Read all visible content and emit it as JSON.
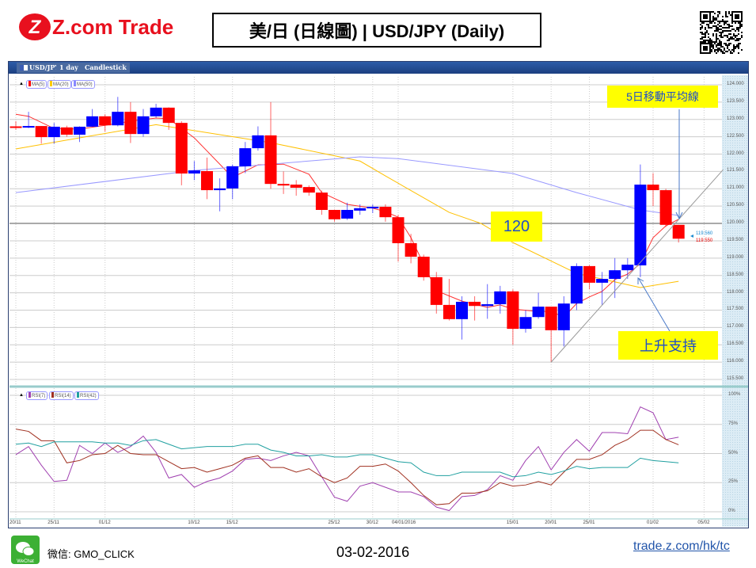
{
  "header": {
    "logo_text": "Z.com Trade",
    "title": "美/日 (日線圖) | USD/JPY  (Daily)"
  },
  "toolbar": {
    "symbol": "USD/JPY",
    "interval": "1 day",
    "chart_type": "Candlestick"
  },
  "footer": {
    "wechat_label": "微信: GMO_CLICK",
    "wechat_icon_text": "WeChat",
    "date": "03-02-2016",
    "link": "trade.z.com/hk/tc"
  },
  "annotations": {
    "ma5_note": "5日移動平均線",
    "level_note": "120",
    "support_note": "上升支持"
  },
  "colors": {
    "up": "#0000ff",
    "down": "#ff0000",
    "ma5": "#ff3030",
    "ma20": "#ffc000",
    "ma50": "#9999ff",
    "rsi7": "#a040b0",
    "rsi14": "#a03020",
    "rsi42": "#20a0a0",
    "annotation_bg": "#ffff00",
    "annotation_text": "#1f4ec8"
  },
  "chart_data": [
    {
      "type": "candlestick",
      "title": "",
      "legend": [
        "MA(5)",
        "MA(20)",
        "MA(50)"
      ],
      "ylim": [
        115.5,
        124.0
      ],
      "y_ticks": [
        "124.000",
        "123.500",
        "123.000",
        "122.500",
        "122.000",
        "121.500",
        "121.000",
        "120.500",
        "120.000",
        "119.500",
        "119.000",
        "118.500",
        "118.000",
        "117.500",
        "117.000",
        "116.500",
        "116.000",
        "115.500"
      ],
      "x_ticks": [
        {
          "label": "20/11",
          "bar": 1
        },
        {
          "label": "25/11",
          "bar": 4
        },
        {
          "label": "01/12",
          "bar": 8
        },
        {
          "label": "10/12",
          "bar": 15
        },
        {
          "label": "15/12",
          "bar": 18
        },
        {
          "label": "25/12",
          "bar": 26
        },
        {
          "label": "30/12",
          "bar": 29
        },
        {
          "label": "04/01/2016",
          "bar": 31
        },
        {
          "label": "15/01",
          "bar": 40
        },
        {
          "label": "20/01",
          "bar": 43
        },
        {
          "label": "25/01",
          "bar": 46
        },
        {
          "label": "01/02",
          "bar": 51
        },
        {
          "label": "05/02",
          "bar": 55
        }
      ],
      "grid": true,
      "last_price_labels": {
        "ask": "119.560",
        "bid": "119.550"
      },
      "horizontal_line": 120.0,
      "ohlc": [
        [
          122.8,
          122.95,
          122.7,
          122.78
        ],
        [
          122.79,
          123.22,
          122.75,
          122.81
        ],
        [
          122.81,
          122.81,
          122.3,
          122.49
        ],
        [
          122.49,
          122.9,
          122.3,
          122.79
        ],
        [
          122.77,
          122.82,
          122.5,
          122.56
        ],
        [
          122.56,
          122.8,
          122.35,
          122.79
        ],
        [
          122.79,
          123.3,
          122.79,
          123.09
        ],
        [
          123.09,
          123.15,
          122.65,
          122.83
        ],
        [
          122.83,
          123.65,
          122.8,
          123.22
        ],
        [
          123.22,
          123.5,
          122.32,
          122.58
        ],
        [
          122.58,
          123.3,
          122.5,
          123.09
        ],
        [
          123.09,
          123.45,
          123.05,
          123.34
        ],
        [
          123.34,
          123.35,
          122.7,
          122.9
        ],
        [
          122.9,
          122.95,
          121.1,
          121.44
        ],
        [
          121.44,
          121.8,
          121.25,
          121.53
        ],
        [
          121.51,
          121.9,
          120.7,
          120.96
        ],
        [
          120.96,
          121.3,
          120.35,
          121.01
        ],
        [
          121.01,
          121.7,
          120.7,
          121.65
        ],
        [
          121.65,
          122.35,
          121.45,
          122.17
        ],
        [
          122.17,
          122.8,
          122.1,
          122.54
        ],
        [
          122.54,
          123.5,
          121.0,
          121.14
        ],
        [
          121.14,
          121.5,
          120.85,
          121.12
        ],
        [
          121.12,
          121.25,
          120.8,
          121.03
        ],
        [
          121.05,
          121.1,
          120.8,
          120.89
        ],
        [
          120.89,
          120.95,
          120.25,
          120.39
        ],
        [
          120.39,
          120.4,
          120.05,
          120.12
        ],
        [
          120.14,
          120.6,
          120.1,
          120.39
        ],
        [
          120.37,
          120.55,
          120.25,
          120.44
        ],
        [
          120.44,
          120.55,
          120.3,
          120.48
        ],
        [
          120.48,
          120.55,
          120.05,
          120.18
        ],
        [
          120.18,
          120.25,
          118.9,
          119.43
        ],
        [
          119.43,
          119.7,
          118.85,
          119.04
        ],
        [
          119.04,
          119.1,
          118.35,
          118.45
        ],
        [
          118.45,
          118.6,
          117.4,
          117.65
        ],
        [
          117.65,
          118.4,
          117.2,
          117.24
        ],
        [
          117.24,
          117.9,
          116.65,
          117.74
        ],
        [
          117.74,
          117.9,
          117.2,
          117.62
        ],
        [
          117.62,
          118.25,
          117.25,
          117.67
        ],
        [
          117.67,
          118.2,
          117.4,
          118.04
        ],
        [
          118.04,
          118.1,
          116.5,
          116.96
        ],
        [
          116.96,
          117.5,
          116.85,
          117.3
        ],
        [
          117.3,
          118.0,
          117.25,
          117.6
        ],
        [
          117.6,
          117.6,
          116.0,
          116.92
        ],
        [
          116.92,
          117.9,
          116.45,
          117.69
        ],
        [
          117.69,
          118.85,
          117.5,
          118.77
        ],
        [
          118.77,
          118.8,
          118.1,
          118.29
        ],
        [
          118.29,
          118.6,
          117.65,
          118.4
        ],
        [
          118.4,
          119.0,
          117.85,
          118.65
        ],
        [
          118.65,
          119.0,
          118.4,
          118.81
        ],
        [
          118.79,
          121.7,
          118.45,
          121.12
        ],
        [
          121.12,
          121.45,
          120.5,
          120.96
        ],
        [
          120.96,
          121.0,
          119.9,
          119.96
        ],
        [
          119.96,
          119.96,
          119.45,
          119.56
        ]
      ],
      "ma": [
        {
          "name": "MA(5)",
          "points": [
            [
              1,
              123.15
            ],
            [
              2,
              123.09
            ],
            [
              4,
              122.74
            ],
            [
              6,
              122.72
            ],
            [
              8,
              122.83
            ],
            [
              10,
              122.95
            ],
            [
              12,
              123.04
            ],
            [
              13,
              123.02
            ],
            [
              15,
              122.47
            ],
            [
              18,
              121.33
            ],
            [
              20,
              121.69
            ],
            [
              22,
              121.71
            ],
            [
              24,
              121.42
            ],
            [
              25,
              120.89
            ],
            [
              27,
              120.55
            ],
            [
              29,
              120.44
            ],
            [
              30,
              120.34
            ],
            [
              31,
              120.18
            ],
            [
              32,
              119.59
            ],
            [
              34,
              118.06
            ],
            [
              36,
              117.76
            ],
            [
              38,
              117.58
            ],
            [
              39,
              117.65
            ],
            [
              40,
              117.53
            ],
            [
              42,
              117.46
            ],
            [
              43,
              117.46
            ],
            [
              44,
              117.3
            ],
            [
              45,
              117.69
            ],
            [
              46,
              117.88
            ],
            [
              47,
              118.04
            ],
            [
              48,
              118.38
            ],
            [
              49,
              118.54
            ],
            [
              50,
              118.84
            ],
            [
              51,
              119.59
            ],
            [
              52,
              119.93
            ],
            [
              53,
              120.12
            ]
          ]
        },
        {
          "name": "MA(20)",
          "points": [
            [
              1,
              122.15
            ],
            [
              12,
              122.85
            ],
            [
              21,
              122.33
            ],
            [
              28,
              121.8
            ],
            [
              30,
              121.37
            ],
            [
              35,
              120.32
            ],
            [
              37.5,
              120.0
            ],
            [
              40,
              119.45
            ],
            [
              45,
              118.56
            ],
            [
              50,
              118.15
            ],
            [
              53,
              118.33
            ]
          ]
        },
        {
          "name": "MA(50)",
          "points": [
            [
              1,
              120.89
            ],
            [
              15,
              121.53
            ],
            [
              21,
              121.71
            ],
            [
              28,
              121.92
            ],
            [
              31,
              121.87
            ],
            [
              40,
              121.44
            ],
            [
              45,
              120.89
            ],
            [
              50,
              120.39
            ],
            [
              53,
              120.23
            ]
          ]
        }
      ],
      "trendline": [
        [
          43,
          116.0
        ],
        [
          56.5,
          121.55
        ]
      ]
    },
    {
      "type": "line",
      "title": "",
      "legend": [
        "RSI(7)",
        "RSI(14)",
        "RSI(42)"
      ],
      "ylim": [
        0,
        100
      ],
      "y_ticks": [
        "100%",
        "75%",
        "50%",
        "25%",
        "0%"
      ],
      "series": [
        {
          "name": "RSI(7)",
          "values": [
            49,
            56,
            40,
            26,
            27,
            57,
            50,
            59,
            51,
            56,
            65,
            51,
            29,
            32,
            21,
            26,
            29,
            35,
            45,
            46,
            44,
            48,
            51,
            48,
            30,
            12.5,
            9,
            22,
            25,
            21,
            17,
            17,
            13,
            4,
            1,
            13,
            14,
            19,
            31,
            27,
            44,
            56,
            36,
            51,
            62,
            52,
            68,
            68,
            67,
            90,
            85,
            62,
            64
          ]
        },
        {
          "name": "RSI(14)",
          "values": [
            71,
            69,
            61,
            61,
            42,
            44,
            49,
            50,
            57,
            50,
            49,
            49,
            43,
            37,
            38,
            34,
            37,
            40,
            46,
            48,
            38,
            38,
            34,
            37,
            30,
            25,
            29,
            39,
            39,
            41,
            35,
            25,
            14,
            6,
            7,
            16,
            16,
            18,
            25,
            22,
            23,
            26,
            23,
            34,
            45,
            45,
            49,
            57,
            62,
            70,
            70,
            62,
            57.5
          ]
        },
        {
          "name": "RSI(42)",
          "values": [
            58,
            59,
            56,
            60,
            60,
            60,
            60,
            59,
            59,
            57,
            61,
            62,
            58,
            54,
            55,
            56,
            56,
            56,
            58,
            58,
            53,
            51,
            48,
            48,
            49,
            47,
            47,
            49,
            49,
            46,
            43,
            42,
            34,
            31,
            31,
            34,
            34,
            34,
            34,
            30,
            31,
            34,
            32,
            35,
            39,
            37,
            38,
            38,
            38,
            46,
            44,
            43,
            42
          ]
        }
      ]
    }
  ]
}
